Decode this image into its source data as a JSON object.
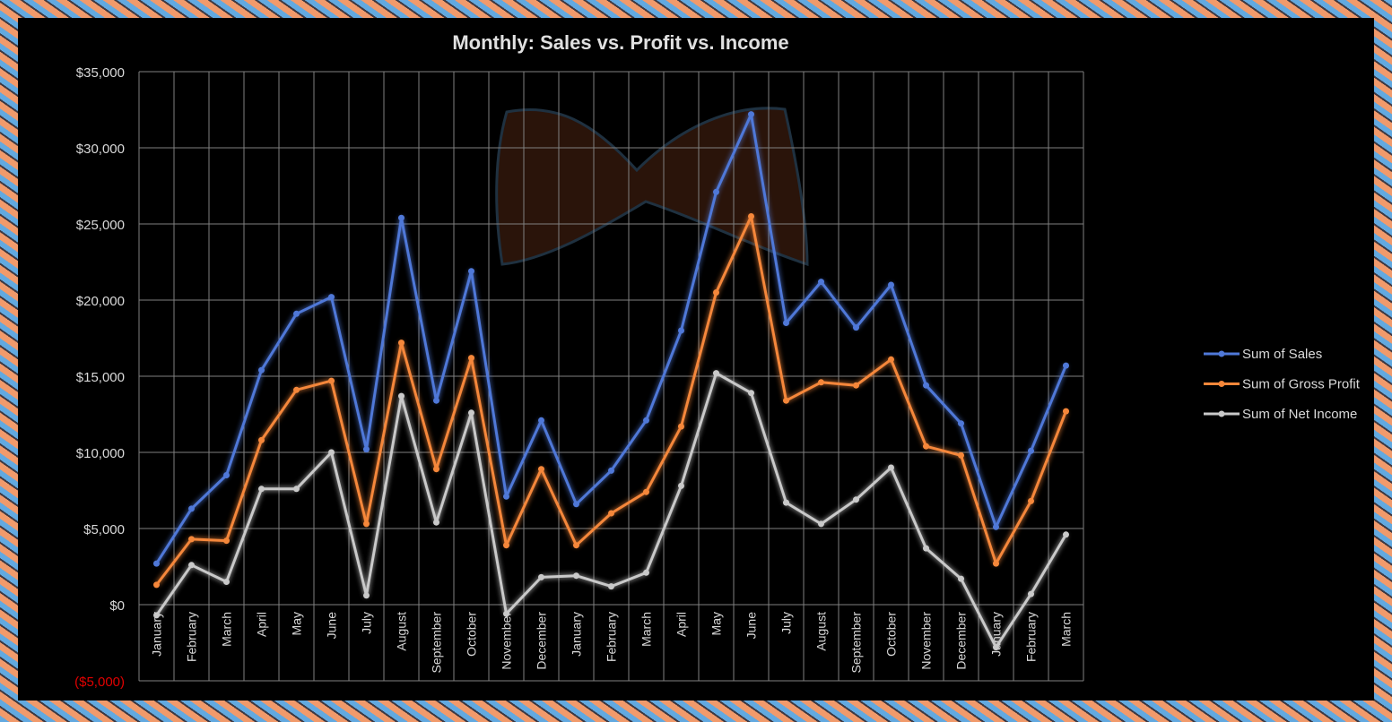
{
  "chart_data": {
    "type": "line",
    "title": "Monthly: Sales vs. Profit vs. Income",
    "categories": [
      "January",
      "February",
      "March",
      "April",
      "May",
      "June",
      "July",
      "August",
      "September",
      "October",
      "November",
      "December",
      "January",
      "February",
      "March",
      "April",
      "May",
      "June",
      "July",
      "August",
      "September",
      "October",
      "November",
      "December",
      "January",
      "February",
      "March"
    ],
    "ylim": [
      -5000,
      35000
    ],
    "y_ticks": [
      {
        "value": 35000,
        "label": "$35,000"
      },
      {
        "value": 30000,
        "label": "$30,000"
      },
      {
        "value": 25000,
        "label": "$25,000"
      },
      {
        "value": 20000,
        "label": "$20,000"
      },
      {
        "value": 15000,
        "label": "$15,000"
      },
      {
        "value": 10000,
        "label": "$10,000"
      },
      {
        "value": 5000,
        "label": "$5,000"
      },
      {
        "value": 0,
        "label": "$0"
      },
      {
        "value": -5000,
        "label": "($5,000)"
      }
    ],
    "grid": true,
    "legend_position": "right",
    "series": [
      {
        "name": "Sum of Sales",
        "color": "#4f78d8",
        "values": [
          2700,
          6300,
          8500,
          15400,
          19100,
          20200,
          10200,
          25400,
          13400,
          21900,
          7100,
          12100,
          6600,
          8800,
          12100,
          18000,
          27100,
          32200,
          18500,
          21200,
          18200,
          21000,
          14400,
          11900,
          5100,
          10100,
          15700
        ]
      },
      {
        "name": "Sum of Gross Profit",
        "color": "#f5873a",
        "values": [
          1300,
          4300,
          4200,
          10800,
          14100,
          14700,
          5300,
          17200,
          8900,
          16200,
          3900,
          8900,
          3900,
          6000,
          7400,
          11700,
          20500,
          25500,
          13400,
          14600,
          14400,
          16100,
          10400,
          9800,
          2700,
          6800,
          12700
        ]
      },
      {
        "name": "Sum of Net Income",
        "color": "#c9c9c9",
        "values": [
          -700,
          2600,
          1500,
          7600,
          7600,
          10000,
          600,
          13700,
          5400,
          12600,
          -600,
          1800,
          1900,
          1200,
          2100,
          7800,
          15200,
          13900,
          6700,
          5300,
          6900,
          9000,
          3700,
          1700,
          -2800,
          700,
          4600
        ]
      }
    ]
  },
  "colors": {
    "negative_label": "#e00000",
    "grid": "#808080",
    "text": "#d9d9d9"
  }
}
